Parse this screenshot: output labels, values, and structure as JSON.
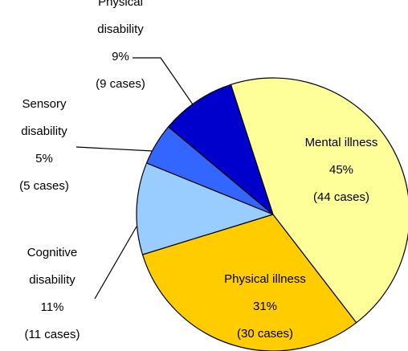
{
  "chart_data": {
    "type": "pie",
    "categories": [
      "Mental illness",
      "Physical illness",
      "Cognitive disability",
      "Sensory disability",
      "Physical disability"
    ],
    "values": [
      45,
      31,
      11,
      5,
      9
    ],
    "value_labels": [
      "45%",
      "31%",
      "11%",
      "5%",
      "9%"
    ],
    "case_labels": [
      "(44 cases)",
      "(30 cases)",
      "(11 cases)",
      "(5 cases)",
      "(9 cases)"
    ],
    "colors": [
      "#ffff99",
      "#ffcc00",
      "#99ccff",
      "#3366ff",
      "#0000cc"
    ]
  }
}
